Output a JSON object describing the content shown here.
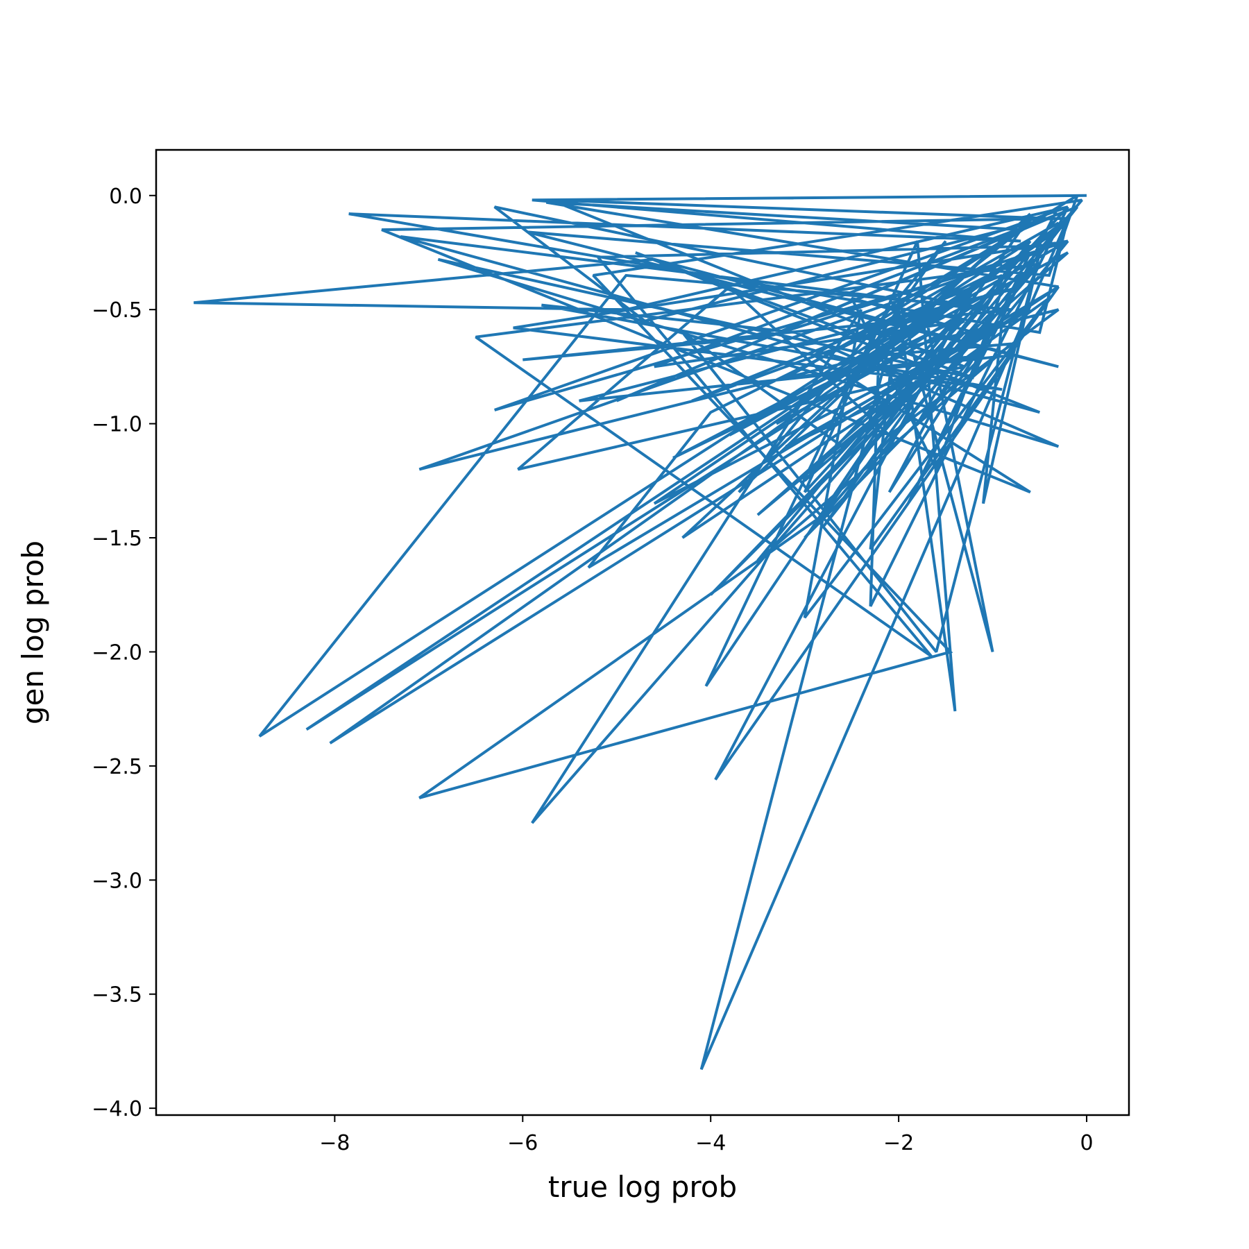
{
  "chart_data": {
    "type": "line",
    "title": "",
    "xlabel": "true log prob",
    "ylabel": "gen log prob",
    "xlim": [
      -9.9,
      0.45
    ],
    "ylim": [
      -4.03,
      0.2
    ],
    "grid": false,
    "legend": "none",
    "xticks": [
      {
        "value": -8,
        "label": "−8"
      },
      {
        "value": -6,
        "label": "−6"
      },
      {
        "value": -4,
        "label": "−4"
      },
      {
        "value": -2,
        "label": "−2"
      },
      {
        "value": 0,
        "label": "0"
      }
    ],
    "yticks": [
      {
        "value": 0.0,
        "label": "0.0"
      },
      {
        "value": -0.5,
        "label": "−0.5"
      },
      {
        "value": -1.0,
        "label": "−1.0"
      },
      {
        "value": -1.5,
        "label": "−1.5"
      },
      {
        "value": -2.0,
        "label": "−2.0"
      },
      {
        "value": -2.5,
        "label": "−2.5"
      },
      {
        "value": -3.0,
        "label": "−3.0"
      },
      {
        "value": -3.5,
        "label": "−3.5"
      },
      {
        "value": -4.0,
        "label": "−4.0"
      }
    ],
    "series": [
      {
        "color": "#1f77b4",
        "x": [
          0.0,
          -5.9,
          -0.7,
          -7.85,
          -0.5,
          -0.2,
          -7.5,
          -0.6,
          -2.9,
          -0.1,
          -0.4,
          -5.95,
          -0.3,
          -4.6,
          -9.5,
          -4.9,
          -0.2,
          -6.3,
          -0.9,
          -7.1,
          -0.3,
          -2.1,
          -3.8,
          -6.05,
          -1.3,
          -5.7,
          -0.4,
          -4.7,
          -6.3,
          -1.1,
          -7.3,
          -0.5,
          -4.8,
          -1.2,
          -6.9,
          -0.3,
          -3.1,
          -5.8,
          -0.9,
          -6.1,
          -0.2,
          -3.4,
          -6.0,
          -0.8,
          -4.9,
          -8.8,
          -0.6,
          -2.5,
          -0.05,
          -5.25,
          -1.45,
          -7.1,
          -2.8,
          -0.7,
          -5.75,
          -0.3,
          -5.3,
          -4.0,
          -0.4,
          -5.2,
          -1.65,
          -6.5,
          -0.5,
          -8.3,
          -0.2,
          -8.05,
          -0.9,
          -1.1,
          -0.5,
          -1.6,
          -4.3,
          -2.6,
          -0.4,
          -3.0,
          -2.4,
          -5.9,
          -0.6,
          -1.9,
          -0.3,
          -2.4,
          -0.7,
          -5.4,
          -0.8,
          -3.95,
          -1.2,
          -4.05,
          -2.2,
          -2.3,
          -0.2,
          -3.0,
          -1.8,
          -1.4,
          -2.0,
          -4.1,
          -0.2,
          -2.6,
          -1.5,
          -3.7,
          -0.6,
          -4.3,
          -0.3,
          -2.3,
          -2.0,
          -1.0,
          -1.7,
          -0.2,
          -1.8,
          -0.8,
          -1.6,
          -2.5,
          -1.2,
          -2.1,
          -0.3,
          -3.2,
          -1.1,
          -3.0,
          -0.5,
          -4.0,
          -1.3,
          -3.5,
          -1.9,
          -3.2,
          -0.6,
          -4.6,
          -1.0,
          -3.8,
          -2.2,
          -0.8,
          -3.5,
          -1.4,
          -4.4,
          -0.2,
          -3.0,
          -1.2,
          -4.2,
          -0.9,
          -2.8,
          -0.1,
          -4.6,
          -1.3,
          -3.3,
          -0.7,
          -5.0,
          -0.4
        ],
        "y": [
          0.0,
          -0.02,
          -0.2,
          -0.08,
          -0.6,
          -0.1,
          -0.15,
          -1.3,
          -0.7,
          0.0,
          -0.35,
          -0.16,
          -0.75,
          -0.28,
          -0.47,
          -0.5,
          -0.05,
          -0.94,
          -0.3,
          -1.2,
          -0.5,
          -1.05,
          -0.4,
          -1.2,
          -0.75,
          -0.02,
          -0.1,
          -0.55,
          -0.05,
          -0.5,
          -0.18,
          -0.95,
          -0.25,
          -0.8,
          -0.28,
          -1.1,
          -0.6,
          -0.48,
          -0.85,
          -0.58,
          -0.2,
          -0.62,
          -0.72,
          -0.5,
          -0.35,
          -2.37,
          -0.2,
          -1.2,
          -0.02,
          -0.35,
          -2.0,
          -2.64,
          -1.4,
          -0.15,
          -0.03,
          -0.4,
          -1.63,
          -0.95,
          -0.22,
          -0.27,
          -2.02,
          -0.62,
          -0.3,
          -2.34,
          -0.12,
          -2.4,
          -0.55,
          -1.35,
          -0.25,
          -2.0,
          -0.6,
          -1.1,
          -0.45,
          -1.85,
          -0.5,
          -2.75,
          -0.25,
          -1.35,
          -0.05,
          -0.6,
          -0.4,
          -0.9,
          -0.7,
          -2.56,
          -0.4,
          -2.15,
          -0.55,
          -1.8,
          -0.05,
          -1.3,
          -0.2,
          -2.26,
          -0.5,
          -3.83,
          -0.1,
          -0.85,
          -0.2,
          -1.3,
          -0.08,
          -1.5,
          -0.4,
          -1.55,
          -0.45,
          -2.0,
          -0.55,
          -0.2,
          -1.0,
          -0.3,
          -1.2,
          -0.45,
          -0.6,
          -1.3,
          -0.12,
          -0.8,
          -0.7,
          -1.5,
          -0.3,
          -1.75,
          -0.6,
          -1.4,
          -0.85,
          -1.1,
          -0.5,
          -1.35,
          -0.35,
          -1.05,
          -0.7,
          -0.65,
          -1.6,
          -0.55,
          -1.15,
          -0.25,
          -1.25,
          -0.45,
          -0.9,
          -0.35,
          -1.45,
          -0.05,
          -0.75,
          -0.55,
          -1.0,
          -0.15,
          -0.9,
          -0.1
        ]
      }
    ]
  }
}
